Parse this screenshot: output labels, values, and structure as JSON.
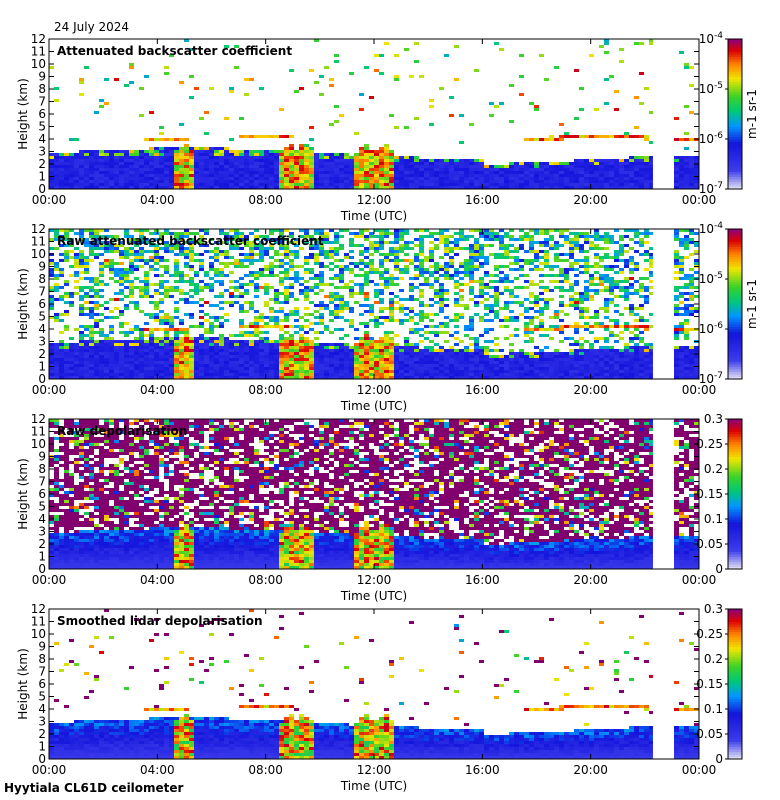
{
  "date": "24 July 2024",
  "site_label": "Hyytiala CL61D ceilometer",
  "chart_data": [
    {
      "type": "heatmap",
      "title": "Attenuated backscatter coefficient",
      "xlabel": "Time (UTC)",
      "ylabel": "Height (km)",
      "x_ticks": [
        "00:00",
        "04:00",
        "08:00",
        "12:00",
        "16:00",
        "20:00",
        "00:00"
      ],
      "y_ticks": [
        "0",
        "1",
        "2",
        "3",
        "4",
        "5",
        "6",
        "7",
        "8",
        "9",
        "10",
        "11",
        "12"
      ],
      "ylim": [
        0,
        12
      ],
      "colorbar": {
        "scale": "log",
        "ticks": [
          "10-7",
          "10-6",
          "10-5",
          "10-4"
        ],
        "unit": "m-1 sr-1"
      },
      "data_gap": [
        22.3,
        23.0
      ],
      "features": {
        "boundary_layer_top_km": 3.0,
        "cloud_layer_km": 4.2,
        "precip_hours": [
          4.9,
          8.8,
          9.3,
          11.6,
          12.3
        ],
        "noise_level": 0.03,
        "upper_plumes": true
      }
    },
    {
      "type": "heatmap",
      "title": "Raw attenuated backscatter coefficient",
      "xlabel": "Time (UTC)",
      "ylabel": "Height (km)",
      "x_ticks": [
        "00:00",
        "04:00",
        "08:00",
        "12:00",
        "16:00",
        "20:00",
        "00:00"
      ],
      "y_ticks": [
        "0",
        "1",
        "2",
        "3",
        "4",
        "5",
        "6",
        "7",
        "8",
        "9",
        "10",
        "11",
        "12"
      ],
      "ylim": [
        0,
        12
      ],
      "colorbar": {
        "scale": "log",
        "ticks": [
          "10-7",
          "10-6",
          "10-5",
          "10-4"
        ],
        "unit": "m-1 sr-1"
      },
      "data_gap": [
        22.3,
        23.0
      ],
      "features": {
        "boundary_layer_top_km": 3.0,
        "cloud_layer_km": 4.2,
        "precip_hours": [
          4.9,
          8.8,
          9.3,
          11.6,
          12.3
        ],
        "noise_level": 0.6,
        "upper_plumes": true
      }
    },
    {
      "type": "heatmap",
      "title": "Raw depolarisation",
      "xlabel": "Time (UTC)",
      "ylabel": "Height (km)",
      "x_ticks": [
        "00:00",
        "04:00",
        "08:00",
        "12:00",
        "16:00",
        "20:00",
        "00:00"
      ],
      "y_ticks": [
        "0",
        "1",
        "2",
        "3",
        "4",
        "5",
        "6",
        "7",
        "8",
        "9",
        "10",
        "11",
        "12"
      ],
      "ylim": [
        0,
        12
      ],
      "colorbar": {
        "scale": "linear",
        "ticks": [
          "0",
          "0.05",
          "0.1",
          "0.15",
          "0.2",
          "0.25",
          "0.3"
        ]
      },
      "data_gap": [
        22.3,
        23.0
      ],
      "features": {
        "boundary_layer_top_km": 3.0,
        "precip_hours": [
          4.9,
          8.8,
          9.3,
          11.6,
          12.3
        ],
        "noise_level": 0.75
      }
    },
    {
      "type": "heatmap",
      "title": "Smoothed lidar depolarisation",
      "xlabel": "Time (UTC)",
      "ylabel": "Height (km)",
      "x_ticks": [
        "00:00",
        "04:00",
        "08:00",
        "12:00",
        "16:00",
        "20:00",
        "00:00"
      ],
      "y_ticks": [
        "0",
        "1",
        "2",
        "3",
        "4",
        "5",
        "6",
        "7",
        "8",
        "9",
        "10",
        "11",
        "12"
      ],
      "ylim": [
        0,
        12
      ],
      "colorbar": {
        "scale": "linear",
        "ticks": [
          "0",
          "0.05",
          "0.1",
          "0.15",
          "0.2",
          "0.25",
          "0.3"
        ]
      },
      "data_gap": [
        22.3,
        23.0
      ],
      "features": {
        "boundary_layer_top_km": 3.0,
        "cloud_layer_km": 4.2,
        "precip_hours": [
          4.9,
          8.8,
          9.3,
          11.6,
          12.3
        ],
        "noise_level": 0.02,
        "upper_plumes": true
      }
    }
  ]
}
